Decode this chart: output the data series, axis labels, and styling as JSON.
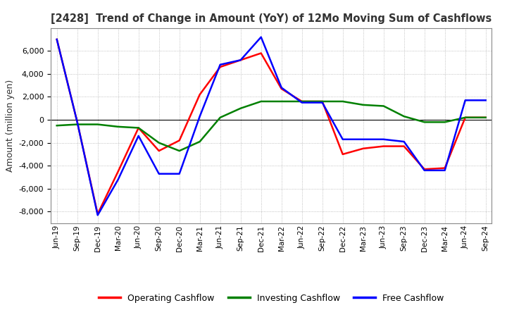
{
  "title": "[2428]  Trend of Change in Amount (YoY) of 12Mo Moving Sum of Cashflows",
  "ylabel": "Amount (million yen)",
  "x_labels": [
    "Jun-19",
    "Sep-19",
    "Dec-19",
    "Mar-20",
    "Jun-20",
    "Sep-20",
    "Dec-20",
    "Mar-21",
    "Jun-21",
    "Sep-21",
    "Dec-21",
    "Mar-22",
    "Jun-22",
    "Sep-22",
    "Dec-22",
    "Mar-23",
    "Jun-23",
    "Sep-23",
    "Dec-23",
    "Mar-24",
    "Jun-24",
    "Sep-24"
  ],
  "operating": [
    7000,
    -200,
    -8200,
    -4500,
    -700,
    -2700,
    -1800,
    2200,
    4600,
    5200,
    5800,
    2700,
    1600,
    1600,
    -3000,
    -2500,
    -2300,
    -2300,
    -4300,
    -4200,
    200,
    200
  ],
  "investing": [
    -500,
    -400,
    -400,
    -600,
    -700,
    -2000,
    -2700,
    -1900,
    200,
    1000,
    1600,
    1600,
    1600,
    1600,
    1600,
    1300,
    1200,
    300,
    -200,
    -200,
    200,
    200
  ],
  "free": [
    7000,
    -200,
    -8300,
    -5200,
    -1400,
    -4700,
    -4700,
    300,
    4800,
    5200,
    7200,
    2800,
    1500,
    1500,
    -1700,
    -1700,
    -1700,
    -1900,
    -4400,
    -4400,
    1700,
    1700
  ],
  "ylim": [
    -9000,
    8000
  ],
  "yticks": [
    -8000,
    -6000,
    -4000,
    -2000,
    0,
    2000,
    4000,
    6000
  ],
  "colors": {
    "operating": "#ff0000",
    "investing": "#008000",
    "free": "#0000ff"
  },
  "legend_labels": [
    "Operating Cashflow",
    "Investing Cashflow",
    "Free Cashflow"
  ],
  "background_color": "#ffffff",
  "grid_color": "#b0b0b0",
  "title_color": "#333333"
}
